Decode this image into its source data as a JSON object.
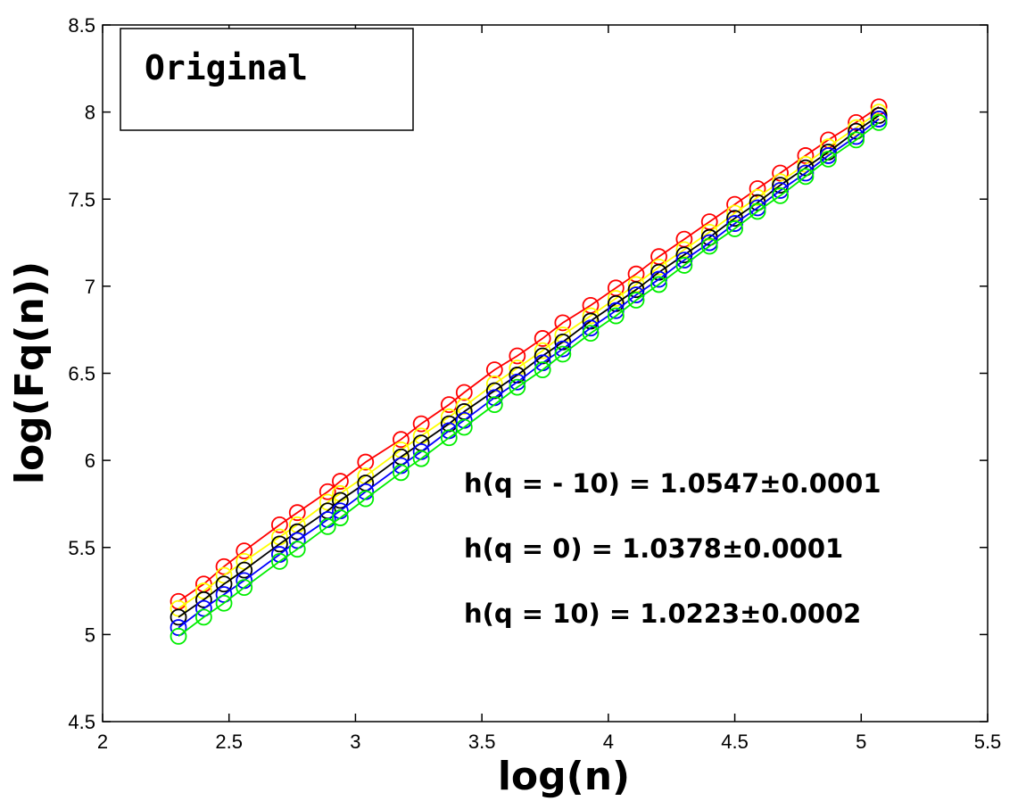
{
  "chart_data": {
    "type": "line",
    "title": "",
    "xlabel": "log(n)",
    "ylabel": "log(Fq(n))",
    "xlim": [
      2,
      5.5
    ],
    "ylim": [
      4.5,
      8.5
    ],
    "xticks": [
      "2",
      "2.5",
      "3",
      "3.5",
      "4",
      "4.5",
      "5",
      "5.5"
    ],
    "yticks": [
      "4.5",
      "5",
      "5.5",
      "6",
      "6.5",
      "7",
      "7.5",
      "8",
      "8.5"
    ],
    "grid": false,
    "legend_box": "Original",
    "annotations": [
      "h(q = - 10) = 1.0547±0.0001",
      "h(q = 0) = 1.0378±0.0001",
      "h(q = 10) = 1.0223±0.0002"
    ],
    "x": [
      2.3,
      2.4,
      2.48,
      2.56,
      2.7,
      2.77,
      2.89,
      2.94,
      3.04,
      3.18,
      3.26,
      3.37,
      3.43,
      3.55,
      3.64,
      3.74,
      3.82,
      3.93,
      4.03,
      4.11,
      4.2,
      4.3,
      4.4,
      4.5,
      4.59,
      4.68,
      4.78,
      4.87,
      4.98,
      5.07
    ],
    "series": [
      {
        "name": "red",
        "color": "#ff0000",
        "values": [
          5.19,
          5.29,
          5.39,
          5.48,
          5.63,
          5.7,
          5.82,
          5.88,
          5.99,
          6.12,
          6.21,
          6.32,
          6.39,
          6.52,
          6.6,
          6.7,
          6.79,
          6.89,
          6.99,
          7.07,
          7.17,
          7.27,
          7.37,
          7.47,
          7.56,
          7.65,
          7.75,
          7.84,
          7.94,
          8.03
        ]
      },
      {
        "name": "yellow",
        "color": "#ffff00",
        "values": [
          5.15,
          5.25,
          5.34,
          5.42,
          5.56,
          5.63,
          5.76,
          5.81,
          5.91,
          6.06,
          6.14,
          6.25,
          6.31,
          6.44,
          6.53,
          6.63,
          6.72,
          6.83,
          6.93,
          7.01,
          7.11,
          7.21,
          7.31,
          7.42,
          7.51,
          7.6,
          7.7,
          7.8,
          7.91,
          8.0
        ]
      },
      {
        "name": "black",
        "color": "#000000",
        "values": [
          5.1,
          5.2,
          5.29,
          5.37,
          5.52,
          5.59,
          5.71,
          5.77,
          5.87,
          6.02,
          6.1,
          6.21,
          6.28,
          6.4,
          6.49,
          6.6,
          6.68,
          6.8,
          6.9,
          6.98,
          7.08,
          7.18,
          7.28,
          7.39,
          7.48,
          7.58,
          7.68,
          7.77,
          7.89,
          7.98
        ]
      },
      {
        "name": "blue",
        "color": "#0000ff",
        "values": [
          5.04,
          5.15,
          5.23,
          5.31,
          5.46,
          5.54,
          5.66,
          5.71,
          5.82,
          5.97,
          6.05,
          6.17,
          6.23,
          6.36,
          6.45,
          6.56,
          6.64,
          6.76,
          6.86,
          6.95,
          7.04,
          7.15,
          7.25,
          7.36,
          7.45,
          7.55,
          7.65,
          7.75,
          7.86,
          7.96
        ]
      },
      {
        "name": "green",
        "color": "#00ee00",
        "values": [
          4.99,
          5.1,
          5.18,
          5.27,
          5.42,
          5.49,
          5.62,
          5.67,
          5.78,
          5.93,
          6.01,
          6.13,
          6.19,
          6.32,
          6.42,
          6.52,
          6.61,
          6.73,
          6.83,
          6.92,
          7.01,
          7.12,
          7.23,
          7.33,
          7.43,
          7.52,
          7.63,
          7.73,
          7.84,
          7.94
        ]
      }
    ]
  }
}
